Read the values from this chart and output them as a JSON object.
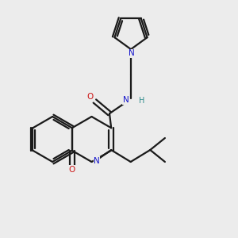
{
  "bg_color": "#ececec",
  "bond_color": "#1a1a1a",
  "N_color": "#1414cc",
  "O_color": "#cc1414",
  "H_color": "#2e8b8b",
  "figsize": [
    3.0,
    3.0
  ],
  "dpi": 100,
  "xlim": [
    0,
    10
  ],
  "ylim": [
    0,
    10
  ]
}
